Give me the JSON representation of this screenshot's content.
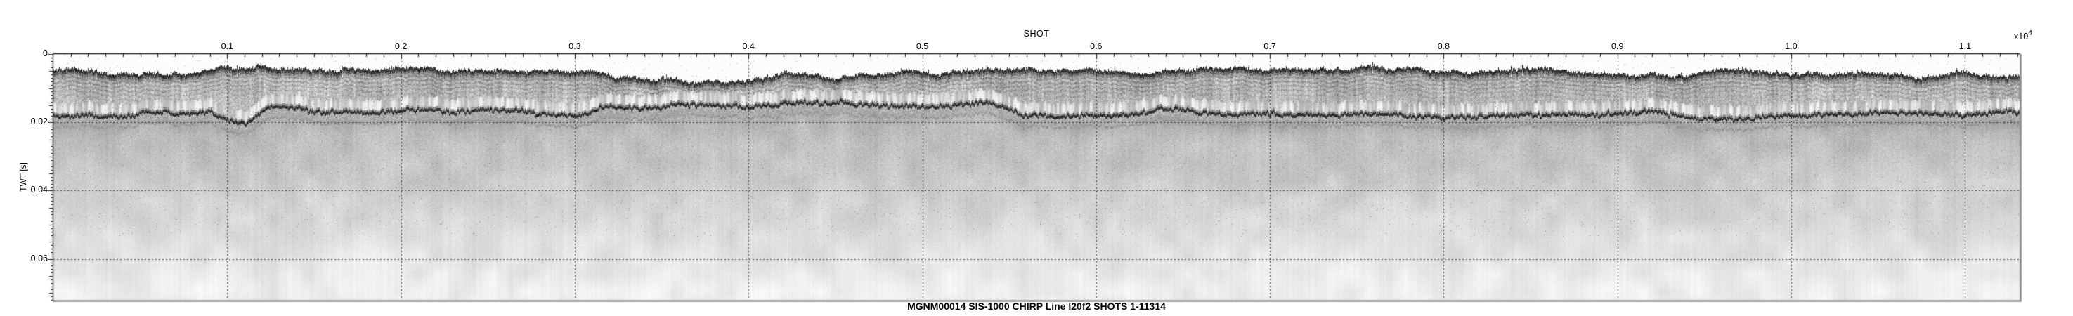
{
  "chart_data": {
    "type": "heatmap",
    "subtype": "chirp-sub-bottom-seismic-reflection-profile",
    "title": "MGNM00014 SIS-1000 CHIRP Line l20f2 SHOTS 1-11314",
    "xlabel": "SHOT",
    "x_multiplier": {
      "base": "x10",
      "exponent": "4"
    },
    "ylabel": "TWT [s]",
    "x_range_shots": [
      0,
      11314
    ],
    "y_range_s": [
      0,
      0.072
    ],
    "x_axis_position": "top",
    "y_axis_inverted_depth_down": true,
    "grid": {
      "vertical": "dotted",
      "horizontal": "dotted"
    },
    "x_ticks": {
      "values": [
        1000,
        2000,
        3000,
        4000,
        5000,
        6000,
        7000,
        8000,
        9000,
        10000,
        11000
      ],
      "labels": [
        "0.1",
        "0.2",
        "0.3",
        "0.4",
        "0.5",
        "0.6",
        "0.7",
        "0.8",
        "0.9",
        "1.0",
        "1.1"
      ]
    },
    "y_ticks": {
      "values": [
        0,
        0.02,
        0.04,
        0.06
      ],
      "labels": [
        "0",
        "0.02",
        "0.04",
        "0.06"
      ]
    },
    "seafloor_trace": {
      "shots": [
        0,
        600,
        1200,
        1900,
        2500,
        3050,
        3150,
        3230,
        3600,
        4100,
        4500,
        4800,
        5200,
        5600,
        6000,
        6400,
        6900,
        7400,
        7900,
        8400,
        8900,
        9400,
        9900,
        10400,
        10900,
        11314
      ],
      "twt_s": [
        0.0046,
        0.0045,
        0.0046,
        0.0045,
        0.0044,
        0.0044,
        0.0046,
        0.0071,
        0.0071,
        0.0068,
        0.0059,
        0.0053,
        0.005,
        0.0049,
        0.0051,
        0.005,
        0.0051,
        0.0049,
        0.0052,
        0.005,
        0.0051,
        0.005,
        0.0052,
        0.005,
        0.0051,
        0.005
      ]
    },
    "subbottom_reflector_trace": {
      "shots": [
        0,
        500,
        900,
        1000,
        1100,
        1250,
        1500,
        1800,
        2100,
        2500,
        2800,
        3000,
        3150,
        3400,
        3800,
        4300,
        4800,
        5200,
        5380,
        5600,
        6000,
        6500,
        7000,
        7500,
        8000,
        8400,
        8770,
        9200,
        9600,
        10000,
        10300,
        10700,
        11000,
        11314
      ],
      "twt_s": [
        0.018,
        0.0174,
        0.0171,
        0.019,
        0.0207,
        0.016,
        0.0166,
        0.017,
        0.0168,
        0.0165,
        0.017,
        0.0172,
        0.0155,
        0.0152,
        0.015,
        0.0151,
        0.0149,
        0.0147,
        0.0144,
        0.0185,
        0.0179,
        0.0177,
        0.0182,
        0.0179,
        0.0186,
        0.0181,
        0.0171,
        0.0183,
        0.0188,
        0.0182,
        0.0173,
        0.0168,
        0.0179,
        0.0172
      ]
    },
    "features": [
      "white water column above first arrival",
      "strong continuous dark seafloor reflector band near 0.005 s",
      "finely layered sediment striations directly below seafloor band",
      "bright low-amplitude white gap above second reflector",
      "strong undulating sub-bottom reflector near 0.02 s with faint echo below",
      "diffuse backscatter fading with depth, near-white below about 0.05 s",
      "abrupt step deepening of seafloor near shot 3200"
    ],
    "palette": {
      "plot_background": "#ffffff",
      "reflector_dark": "#141414",
      "sediment_mid_gray": "#9a9a9a",
      "gap_white": "#f2f2f2",
      "deep_light_gray": "#e9e9e9",
      "frame": "#1a1a1a",
      "frame_shadow": "#8a8a8a",
      "grid_dots": "#444444",
      "top_rule": "#000000"
    }
  }
}
